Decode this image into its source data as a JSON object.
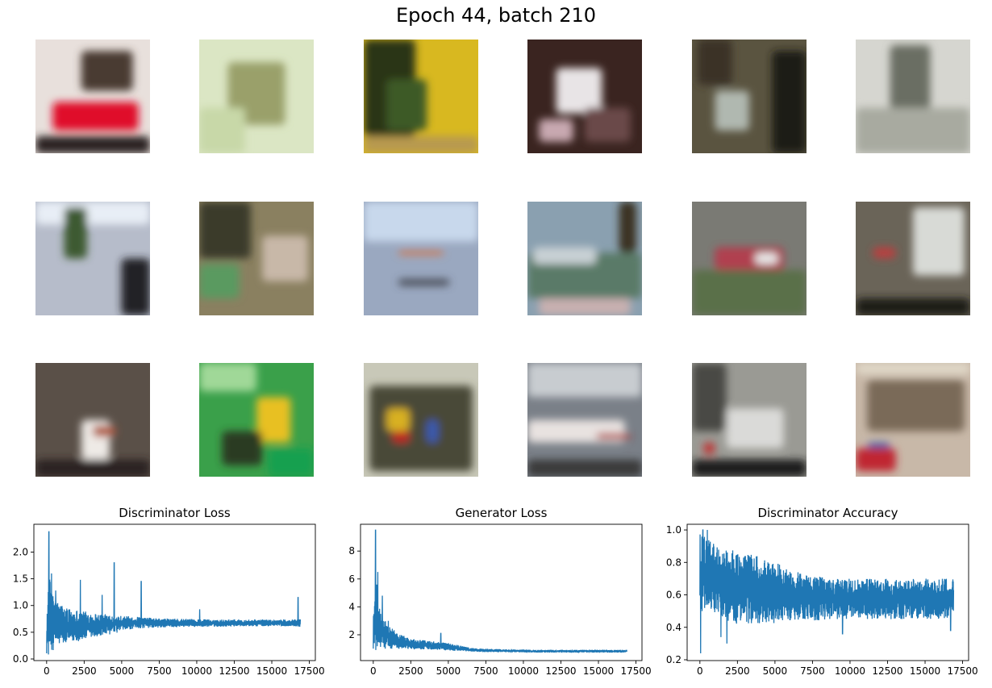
{
  "figure": {
    "suptitle": "Epoch 44, batch 210"
  },
  "samples": {
    "rows": 3,
    "cols": 6,
    "images": [
      {
        "blobs": [
          [
            "#e8e0dc"
          ],
          [
            "#e0102a",
            0.15,
            0.55,
            0.75,
            0.25
          ],
          [
            "#4a3a30",
            0.4,
            0.1,
            0.45,
            0.35
          ],
          [
            "#2a2020",
            0.0,
            0.85,
            1.0,
            0.15
          ]
        ]
      },
      {
        "blobs": [
          [
            "#dbe6c4"
          ],
          [
            "#9aa06a",
            0.25,
            0.2,
            0.5,
            0.55
          ],
          [
            "#c8d8a8",
            0.0,
            0.6,
            0.4,
            0.4
          ]
        ]
      },
      {
        "blobs": [
          [
            "#d8b820"
          ],
          [
            "#2a3418",
            0.0,
            0.0,
            0.45,
            0.85
          ],
          [
            "#3e5a28",
            0.2,
            0.35,
            0.35,
            0.45
          ],
          [
            "#b89a50",
            0.0,
            0.85,
            1.0,
            0.15
          ]
        ]
      },
      {
        "blobs": [
          [
            "#3a2420"
          ],
          [
            "#e8e4e6",
            0.25,
            0.25,
            0.4,
            0.4
          ],
          [
            "#6a4a48",
            0.5,
            0.6,
            0.4,
            0.3
          ],
          [
            "#c8a8b0",
            0.1,
            0.7,
            0.3,
            0.2
          ]
        ]
      },
      {
        "blobs": [
          [
            "#5a5440"
          ],
          [
            "#1e1e14",
            0.7,
            0.1,
            0.3,
            0.9
          ],
          [
            "#b0b8b0",
            0.2,
            0.45,
            0.3,
            0.35
          ],
          [
            "#3a3028",
            0.05,
            0.0,
            0.3,
            0.4
          ]
        ]
      },
      {
        "blobs": [
          [
            "#d6d6d0"
          ],
          [
            "#6a6e64",
            0.3,
            0.05,
            0.35,
            0.95
          ],
          [
            "#a8aaa0",
            0.0,
            0.6,
            1.0,
            0.4
          ]
        ]
      },
      {
        "blobs": [
          [
            "#b6bcca"
          ],
          [
            "#e8eef6",
            0.0,
            0.0,
            1.0,
            0.2
          ],
          [
            "#3e5a30",
            0.25,
            0.05,
            0.2,
            0.45
          ],
          [
            "#202428",
            0.75,
            0.5,
            0.25,
            0.5
          ]
        ]
      },
      {
        "blobs": [
          [
            "#8a8060"
          ],
          [
            "#3a3a2a",
            0.0,
            0.0,
            0.45,
            0.5
          ],
          [
            "#5a9a60",
            0.0,
            0.55,
            0.35,
            0.3
          ],
          [
            "#c8b8a8",
            0.55,
            0.3,
            0.4,
            0.4
          ]
        ]
      },
      {
        "blobs": [
          [
            "#9aa8c0"
          ],
          [
            "#c8d8ec",
            0.0,
            0.0,
            1.0,
            0.35
          ],
          [
            "#d07850",
            0.3,
            0.43,
            0.4,
            0.04
          ],
          [
            "#4a4e58",
            0.3,
            0.68,
            0.45,
            0.06
          ]
        ]
      },
      {
        "blobs": [
          [
            "#8aa0b0"
          ],
          [
            "#5a7a68",
            0.0,
            0.45,
            1.0,
            0.4
          ],
          [
            "#c8d0d4",
            0.05,
            0.4,
            0.55,
            0.15
          ],
          [
            "#3a3020",
            0.8,
            0.0,
            0.15,
            0.45
          ],
          [
            "#c8b0b0",
            0.1,
            0.85,
            0.8,
            0.15
          ]
        ]
      },
      {
        "blobs": [
          [
            "#7a7a74"
          ],
          [
            "#5a7048",
            0.0,
            0.6,
            1.0,
            0.4
          ],
          [
            "#b04050",
            0.2,
            0.4,
            0.6,
            0.2
          ],
          [
            "#e8e8e8",
            0.55,
            0.45,
            0.2,
            0.1
          ]
        ]
      },
      {
        "blobs": [
          [
            "#6a6458"
          ],
          [
            "#d8dad6",
            0.5,
            0.05,
            0.45,
            0.6
          ],
          [
            "#b84040",
            0.15,
            0.4,
            0.2,
            0.1
          ],
          [
            "#1a1a14",
            0.0,
            0.85,
            1.0,
            0.15
          ]
        ]
      },
      {
        "blobs": [
          [
            "#5a5048"
          ],
          [
            "#eeeae6",
            0.4,
            0.5,
            0.25,
            0.35
          ],
          [
            "#b05a40",
            0.5,
            0.55,
            0.2,
            0.1
          ],
          [
            "#2a2420",
            0.0,
            0.85,
            1.0,
            0.15
          ]
        ]
      },
      {
        "blobs": [
          [
            "#3aa04a"
          ],
          [
            "#a0d898",
            0.0,
            0.0,
            0.5,
            0.25
          ],
          [
            "#e8c020",
            0.5,
            0.3,
            0.3,
            0.4
          ],
          [
            "#2a3a20",
            0.2,
            0.6,
            0.35,
            0.3
          ],
          [
            "#18a050",
            0.6,
            0.75,
            0.4,
            0.25
          ]
        ]
      },
      {
        "blobs": [
          [
            "#c8c8b8"
          ],
          [
            "#4a4a38",
            0.05,
            0.2,
            0.9,
            0.75
          ],
          [
            "#d8b020",
            0.2,
            0.4,
            0.2,
            0.2
          ],
          [
            "#c02020",
            0.25,
            0.6,
            0.15,
            0.1
          ],
          [
            "#3a5ab0",
            0.55,
            0.5,
            0.1,
            0.2
          ]
        ]
      },
      {
        "blobs": [
          [
            "#7a8088"
          ],
          [
            "#c8ccd0",
            0.0,
            0.0,
            1.0,
            0.3
          ],
          [
            "#e8e2e0",
            0.0,
            0.5,
            0.85,
            0.2
          ],
          [
            "#b03030",
            0.6,
            0.62,
            0.3,
            0.05
          ],
          [
            "#3a3a3a",
            0.0,
            0.85,
            1.0,
            0.15
          ]
        ]
      },
      {
        "blobs": [
          [
            "#9a9a94"
          ],
          [
            "#1a1a1a",
            0.0,
            0.85,
            1.0,
            0.15
          ],
          [
            "#dadad8",
            0.3,
            0.4,
            0.5,
            0.35
          ],
          [
            "#c03030",
            0.1,
            0.7,
            0.1,
            0.1
          ],
          [
            "#4a4a44",
            0.0,
            0.0,
            0.3,
            0.6
          ]
        ]
      },
      {
        "blobs": [
          [
            "#c8b8a8"
          ],
          [
            "#7a6a58",
            0.1,
            0.15,
            0.85,
            0.45
          ],
          [
            "#c02830",
            0.0,
            0.75,
            0.35,
            0.2
          ],
          [
            "#3a5aa8",
            0.1,
            0.7,
            0.2,
            0.05
          ],
          [
            "#e0d8c8",
            0.0,
            0.0,
            1.0,
            0.1
          ]
        ]
      }
    ]
  },
  "chart_data": [
    {
      "type": "line",
      "title": "Discriminator Loss",
      "xlabel": "",
      "ylabel": "",
      "xlim": [
        -850,
        17900
      ],
      "ylim": [
        -0.03,
        2.52
      ],
      "xticks": [
        0,
        2500,
        5000,
        7500,
        10000,
        12500,
        15000,
        17500
      ],
      "xtick_labels": [
        "0",
        "2500",
        "5000",
        "7500",
        "10000",
        "12500",
        "15000",
        "17500"
      ],
      "yticks": [
        0.0,
        0.5,
        1.0,
        1.5,
        2.0
      ],
      "ytick_labels": [
        "0.0",
        "0.5",
        "1.0",
        "1.5",
        "2.0"
      ],
      "color": "#1f77b4",
      "envelope": {
        "x": [
          0,
          150,
          400,
          800,
          1500,
          2500,
          3500,
          4500,
          5500,
          6500,
          7500,
          9000,
          11000,
          13000,
          15000,
          16500,
          16900
        ],
        "lower": [
          0.1,
          0.05,
          0.15,
          0.25,
          0.3,
          0.35,
          0.4,
          0.48,
          0.55,
          0.58,
          0.58,
          0.6,
          0.6,
          0.61,
          0.61,
          0.61,
          0.6
        ],
        "upper": [
          0.8,
          1.6,
          1.2,
          1.05,
          0.95,
          0.9,
          0.85,
          0.82,
          0.8,
          0.78,
          0.76,
          0.75,
          0.74,
          0.74,
          0.74,
          0.74,
          0.74
        ]
      },
      "spikes": [
        [
          150,
          2.38
        ],
        [
          330,
          1.6
        ],
        [
          600,
          1.28
        ],
        [
          2250,
          1.48
        ],
        [
          3700,
          1.2
        ],
        [
          4500,
          1.8
        ],
        [
          6300,
          1.45
        ],
        [
          10200,
          0.93
        ],
        [
          16750,
          1.15
        ]
      ]
    },
    {
      "type": "line",
      "title": "Generator Loss",
      "xlabel": "",
      "ylabel": "",
      "xlim": [
        -850,
        17900
      ],
      "ylim": [
        0.15,
        9.92
      ],
      "xticks": [
        0,
        2500,
        5000,
        7500,
        10000,
        12500,
        15000,
        17500
      ],
      "xtick_labels": [
        "0",
        "2500",
        "5000",
        "7500",
        "10000",
        "12500",
        "15000",
        "17500"
      ],
      "yticks": [
        2,
        4,
        6,
        8
      ],
      "ytick_labels": [
        "2",
        "4",
        "6",
        "8"
      ],
      "color": "#1f77b4",
      "envelope": {
        "x": [
          0,
          150,
          400,
          800,
          1500,
          2500,
          3500,
          4500,
          5500,
          6500,
          7500,
          9000,
          11000,
          13000,
          15000,
          16500,
          16900
        ],
        "lower": [
          0.5,
          0.6,
          1.0,
          1.0,
          1.0,
          0.95,
          0.95,
          0.9,
          0.85,
          0.8,
          0.75,
          0.75,
          0.72,
          0.72,
          0.72,
          0.72,
          0.72
        ],
        "upper": [
          4.0,
          6.4,
          4.0,
          3.0,
          2.2,
          1.7,
          1.6,
          1.5,
          1.3,
          1.05,
          1.0,
          0.95,
          0.92,
          0.92,
          0.92,
          0.92,
          0.92
        ]
      },
      "spikes": [
        [
          150,
          9.5
        ],
        [
          300,
          6.5
        ],
        [
          600,
          4.8
        ],
        [
          1000,
          3.0
        ],
        [
          4500,
          2.1
        ]
      ]
    },
    {
      "type": "line",
      "title": "Discriminator Accuracy",
      "xlabel": "",
      "ylabel": "",
      "xlim": [
        -850,
        17900
      ],
      "ylim": [
        0.195,
        1.035
      ],
      "xticks": [
        0,
        2500,
        5000,
        7500,
        10000,
        12500,
        15000,
        17500
      ],
      "xtick_labels": [
        "0",
        "2500",
        "5000",
        "7500",
        "10000",
        "12500",
        "15000",
        "17500"
      ],
      "yticks": [
        0.2,
        0.4,
        0.6,
        0.8,
        1.0
      ],
      "ytick_labels": [
        "0.2",
        "0.4",
        "0.6",
        "0.8",
        "1.0"
      ],
      "color": "#1f77b4",
      "envelope": {
        "x": [
          0,
          150,
          400,
          800,
          1500,
          2500,
          3500,
          4500,
          5500,
          6500,
          7500,
          9000,
          11000,
          13000,
          15000,
          16500,
          16900
        ],
        "lower": [
          0.45,
          0.5,
          0.52,
          0.5,
          0.45,
          0.42,
          0.42,
          0.42,
          0.43,
          0.44,
          0.44,
          0.45,
          0.45,
          0.45,
          0.45,
          0.45,
          0.48
        ],
        "upper": [
          0.98,
          0.97,
          0.95,
          0.93,
          0.9,
          0.87,
          0.85,
          0.82,
          0.78,
          0.74,
          0.72,
          0.7,
          0.7,
          0.7,
          0.7,
          0.7,
          0.7
        ]
      },
      "spikes": [
        [
          50,
          0.24
        ],
        [
          1800,
          0.3
        ],
        [
          1400,
          0.34
        ],
        [
          9500,
          0.36
        ],
        [
          16700,
          0.38
        ],
        [
          200,
          1.0
        ],
        [
          500,
          1.0
        ]
      ]
    }
  ]
}
